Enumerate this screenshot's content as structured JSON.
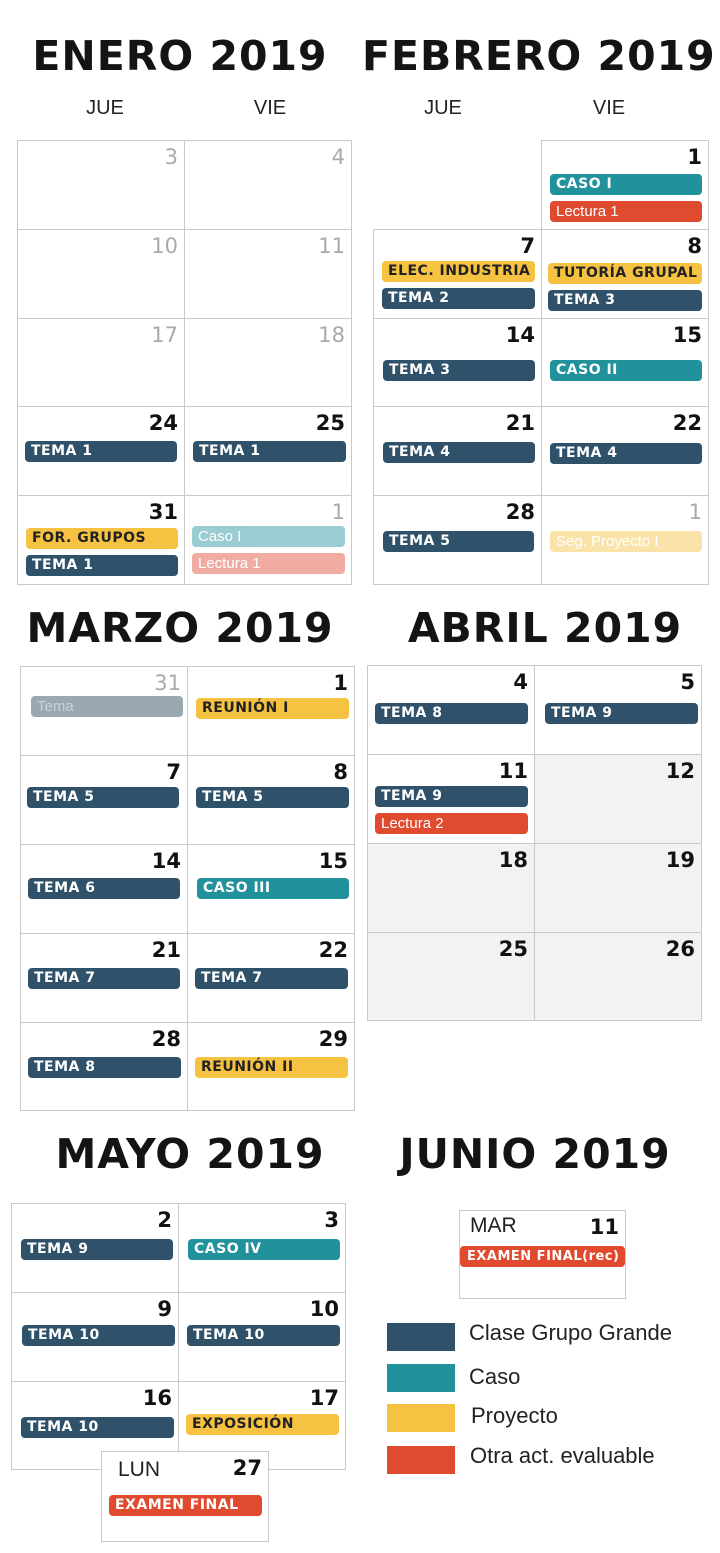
{
  "colors": {
    "clase_grupo_grande": "#2f5169",
    "caso": "#21919c",
    "proyecto": "#f5c242",
    "otra_act_evaluable": "#e04a2e"
  },
  "enero": {
    "title": "ENERO 2019",
    "dow": [
      "JUE",
      "VIE"
    ],
    "days": [
      "3",
      "4",
      "10",
      "11",
      "17",
      "18",
      "24",
      "25",
      "31",
      "1"
    ],
    "events": {
      "d24": "TEMA 1",
      "d25": "TEMA 1",
      "d31a": "FOR. GRUPOS",
      "d31b": "TEMA 1",
      "d1a": "Caso I",
      "d1b": "Lectura 1"
    }
  },
  "febrero": {
    "title": "FEBRERO 2019",
    "dow": [
      "JUE",
      "VIE"
    ],
    "days": [
      "1",
      "7",
      "8",
      "14",
      "15",
      "21",
      "22",
      "28",
      "1"
    ],
    "events": {
      "d1a": "CASO I",
      "d1b": "Lectura 1",
      "d7a": "ELEC. INDUSTRIA",
      "d7b": "TEMA 2",
      "d8a": "TUTORÍA GRUPAL",
      "d8b": "TEMA 3",
      "d14": "TEMA 3",
      "d15": "CASO II",
      "d21": "TEMA 4",
      "d22": "TEMA 4",
      "d28": "TEMA 5",
      "d1m": "Seg. Proyecto I"
    }
  },
  "marzo": {
    "title": "MARZO 2019",
    "days": [
      "31",
      "1",
      "7",
      "8",
      "14",
      "15",
      "21",
      "22",
      "28",
      "29"
    ],
    "events": {
      "d31": "Tema",
      "d1": "REUNIÓN I",
      "d7": "TEMA 5",
      "d8": "TEMA 5",
      "d14": "TEMA 6",
      "d15": "CASO III",
      "d21": "TEMA 7",
      "d22": "TEMA 7",
      "d28": "TEMA 8",
      "d29": "REUNIÓN II"
    }
  },
  "abril": {
    "title": "ABRIL 2019",
    "days": [
      "4",
      "5",
      "11",
      "12",
      "18",
      "19",
      "25",
      "26"
    ],
    "events": {
      "d4": "TEMA 8",
      "d5": "TEMA 9",
      "d11a": "TEMA 9",
      "d11b": "Lectura 2"
    }
  },
  "mayo": {
    "title": "MAYO 2019",
    "days": [
      "2",
      "3",
      "9",
      "10",
      "16",
      "17",
      "27"
    ],
    "events": {
      "d2": "TEMA 9",
      "d3": "CASO IV",
      "d9": "TEMA 10",
      "d10": "TEMA 10",
      "d16": "TEMA 10",
      "d17": "EXPOSICIÓN",
      "d27": "EXAMEN FINAL"
    },
    "d27_dow": "LUN"
  },
  "junio": {
    "title": "JUNIO 2019",
    "d11_dow": "MAR",
    "d11_num": "11",
    "d11_event": "EXAMEN FINAL(rec)"
  },
  "legend": [
    {
      "label": "Clase Grupo Grande",
      "color": "#2f5169"
    },
    {
      "label": "Caso",
      "color": "#21919c"
    },
    {
      "label": "Proyecto",
      "color": "#f5c242"
    },
    {
      "label": "Otra act. evaluable",
      "color": "#e04a2e"
    }
  ]
}
